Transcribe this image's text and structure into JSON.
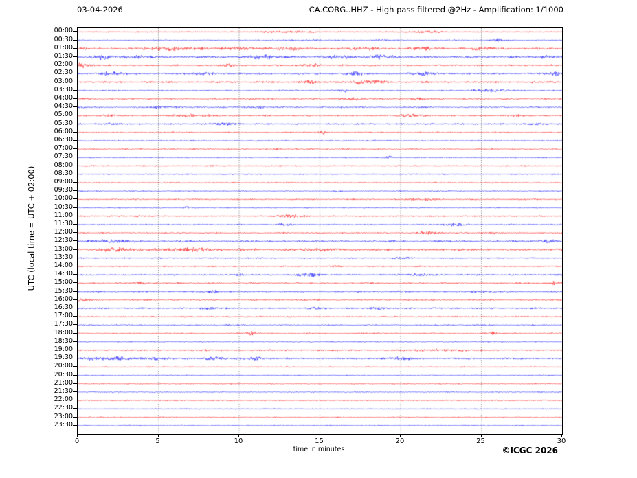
{
  "header": {
    "date": "03-04-2026",
    "station_title": "CA.CORG..HHZ - High pass filtered @2Hz - Amplification: 1/1000"
  },
  "footer": {
    "copyright": "©ICGC 2026"
  },
  "colors": {
    "red": "#ff0000",
    "blue": "#0000ff",
    "grid": "#555555",
    "frame": "#000000",
    "background": "#ffffff"
  },
  "chart_data": {
    "type": "line",
    "subtype": "helicorder-seismogram",
    "title": "CA.CORG..HHZ - High pass filtered @2Hz - Amplification: 1/1000",
    "date": "03-04-2026",
    "x_axis": {
      "label": "time in minutes",
      "ticks": [
        "0",
        "5",
        "10",
        "15",
        "20",
        "25",
        "30"
      ],
      "range": [
        0,
        30
      ],
      "gridlines_at_minutes": [
        5,
        10,
        15,
        20,
        25
      ],
      "grid_style": "dotted"
    },
    "y_axis": {
      "label": "UTC (local time = UTC + 02:00)",
      "direction": "top-to-bottom",
      "minutes_per_row": 30
    },
    "legend": {
      "hour_rows_color": "red",
      "half_hour_rows_color": "blue"
    },
    "rows": [
      {
        "label": "00:00",
        "color": "red",
        "noise": 0.5,
        "events": [
          [
            13,
            0.9,
            1.5
          ],
          [
            21.5,
            1.0,
            1.2
          ]
        ]
      },
      {
        "label": "00:30",
        "color": "blue",
        "noise": 0.5,
        "events": [
          [
            14,
            0.7,
            0.8
          ],
          [
            19,
            0.6,
            0.6
          ],
          [
            26,
            0.8,
            0.5
          ]
        ]
      },
      {
        "label": "01:00",
        "color": "red",
        "noise": 0.95,
        "events": [
          [
            5.5,
            1.5,
            1.2
          ],
          [
            9,
            1.0,
            1.5
          ],
          [
            13,
            1.3,
            0.8
          ],
          [
            17.5,
            1.1,
            1.0
          ],
          [
            21.3,
            1.5,
            0.7
          ],
          [
            25,
            0.9,
            1.0
          ]
        ]
      },
      {
        "label": "01:30",
        "color": "blue",
        "noise": 1.0,
        "events": [
          [
            1.4,
            2.4,
            0.5
          ],
          [
            3.5,
            1.2,
            0.8
          ],
          [
            11.6,
            2.0,
            0.8
          ],
          [
            16,
            1.1,
            1.0
          ],
          [
            18.8,
            1.5,
            0.9
          ],
          [
            29,
            1.3,
            0.6
          ]
        ]
      },
      {
        "label": "02:00",
        "color": "red",
        "noise": 0.75,
        "events": [
          [
            0.3,
            2.0,
            0.5
          ],
          [
            9.3,
            1.2,
            0.5
          ],
          [
            14.5,
            0.9,
            0.6
          ]
        ]
      },
      {
        "label": "02:30",
        "color": "blue",
        "noise": 0.8,
        "events": [
          [
            2,
            1.4,
            0.8
          ],
          [
            8,
            1.1,
            0.6
          ],
          [
            17.2,
            1.7,
            0.5
          ],
          [
            21.3,
            1.5,
            0.7
          ],
          [
            29.6,
            1.7,
            0.4
          ]
        ]
      },
      {
        "label": "03:00",
        "color": "red",
        "noise": 0.8,
        "events": [
          [
            14.3,
            1.4,
            0.5
          ],
          [
            17.3,
            1.8,
            0.5
          ],
          [
            18.6,
            1.8,
            0.5
          ]
        ]
      },
      {
        "label": "03:30",
        "color": "blue",
        "noise": 0.6,
        "events": [
          [
            16.5,
            0.9,
            0.4
          ],
          [
            25.5,
            1.6,
            0.9
          ]
        ]
      },
      {
        "label": "04:00",
        "color": "red",
        "noise": 0.7,
        "events": [
          [
            17.5,
            1.0,
            0.8
          ],
          [
            21,
            0.9,
            0.6
          ]
        ]
      },
      {
        "label": "04:30",
        "color": "blue",
        "noise": 0.65,
        "events": [
          [
            5.5,
            0.9,
            0.9
          ],
          [
            11,
            0.8,
            0.8
          ]
        ]
      },
      {
        "label": "05:00",
        "color": "red",
        "noise": 0.7,
        "events": [
          [
            2,
            1.1,
            0.6
          ],
          [
            6.5,
            1.3,
            0.8
          ],
          [
            8.2,
            1.0,
            0.5
          ],
          [
            20.5,
            1.3,
            0.9
          ],
          [
            27,
            1.1,
            0.6
          ]
        ]
      },
      {
        "label": "05:30",
        "color": "blue",
        "noise": 0.7,
        "events": [
          [
            2.3,
            0.9,
            0.5
          ],
          [
            9,
            1.2,
            0.6
          ],
          [
            28.5,
            1.0,
            0.5
          ]
        ]
      },
      {
        "label": "06:00",
        "color": "red",
        "noise": 0.6,
        "events": [
          [
            15.2,
            1.8,
            0.3
          ]
        ]
      },
      {
        "label": "06:30",
        "color": "blue",
        "noise": 0.55,
        "events": [
          [
            18,
            0.6,
            0.4
          ]
        ]
      },
      {
        "label": "07:00",
        "color": "red",
        "noise": 0.6,
        "events": []
      },
      {
        "label": "07:30",
        "color": "blue",
        "noise": 0.5,
        "events": [
          [
            19.3,
            1.4,
            0.25
          ]
        ]
      },
      {
        "label": "08:00",
        "color": "red",
        "noise": 0.55,
        "events": []
      },
      {
        "label": "08:30",
        "color": "blue",
        "noise": 0.5,
        "events": []
      },
      {
        "label": "09:00",
        "color": "red",
        "noise": 0.55,
        "events": []
      },
      {
        "label": "09:30",
        "color": "blue",
        "noise": 0.5,
        "events": [
          [
            16,
            0.6,
            0.3
          ]
        ]
      },
      {
        "label": "10:00",
        "color": "red",
        "noise": 0.6,
        "events": [
          [
            21.5,
            1.4,
            0.9
          ]
        ]
      },
      {
        "label": "10:30",
        "color": "blue",
        "noise": 0.5,
        "events": [
          [
            6.7,
            1.3,
            0.3
          ]
        ]
      },
      {
        "label": "11:00",
        "color": "red",
        "noise": 0.6,
        "events": [
          [
            3.7,
            0.8,
            0.4
          ],
          [
            13.2,
            1.4,
            0.9
          ]
        ]
      },
      {
        "label": "11:30",
        "color": "blue",
        "noise": 0.6,
        "events": [
          [
            12.8,
            1.1,
            0.5
          ],
          [
            23.3,
            1.2,
            0.6
          ]
        ]
      },
      {
        "label": "12:00",
        "color": "red",
        "noise": 0.6,
        "events": [
          [
            21.8,
            1.2,
            0.7
          ],
          [
            26,
            0.8,
            0.5
          ]
        ]
      },
      {
        "label": "12:30",
        "color": "blue",
        "noise": 0.85,
        "events": [
          [
            2,
            1.0,
            1.5
          ],
          [
            29.2,
            1.4,
            0.5
          ]
        ]
      },
      {
        "label": "13:00",
        "color": "red",
        "noise": 1.05,
        "events": [
          [
            2.5,
            1.4,
            1.2
          ],
          [
            7,
            1.4,
            1.5
          ],
          [
            15,
            1.2,
            0.8
          ]
        ]
      },
      {
        "label": "13:30",
        "color": "blue",
        "noise": 0.6,
        "events": [
          [
            20,
            0.8,
            0.5
          ]
        ]
      },
      {
        "label": "14:00",
        "color": "red",
        "noise": 0.6,
        "events": [
          [
            16,
            0.7,
            0.5
          ]
        ]
      },
      {
        "label": "14:30",
        "color": "blue",
        "noise": 0.7,
        "events": [
          [
            10,
            0.8,
            0.4
          ],
          [
            14.5,
            1.9,
            0.7
          ],
          [
            21,
            1.2,
            0.7
          ]
        ]
      },
      {
        "label": "15:00",
        "color": "red",
        "noise": 0.7,
        "events": [
          [
            4,
            0.8,
            0.5
          ],
          [
            29.4,
            1.5,
            0.4
          ]
        ]
      },
      {
        "label": "15:30",
        "color": "blue",
        "noise": 0.7,
        "events": [
          [
            8.5,
            1.1,
            0.5
          ],
          [
            25,
            1.0,
            0.6
          ]
        ]
      },
      {
        "label": "16:00",
        "color": "red",
        "noise": 0.7,
        "events": [
          [
            0.2,
            1.4,
            0.3
          ]
        ]
      },
      {
        "label": "16:30",
        "color": "blue",
        "noise": 0.7,
        "events": [
          [
            8,
            1.0,
            0.5
          ],
          [
            14.8,
            1.1,
            0.4
          ],
          [
            18.6,
            1.2,
            0.5
          ]
        ]
      },
      {
        "label": "17:00",
        "color": "red",
        "noise": 0.6,
        "events": []
      },
      {
        "label": "17:30",
        "color": "blue",
        "noise": 0.55,
        "events": []
      },
      {
        "label": "18:00",
        "color": "red",
        "noise": 0.6,
        "events": [
          [
            10.8,
            1.6,
            0.35
          ],
          [
            25.7,
            1.9,
            0.2
          ]
        ]
      },
      {
        "label": "18:30",
        "color": "blue",
        "noise": 0.5,
        "events": []
      },
      {
        "label": "19:00",
        "color": "red",
        "noise": 0.7,
        "events": [
          [
            22.5,
            0.9,
            1.5
          ]
        ]
      },
      {
        "label": "19:30",
        "color": "blue",
        "noise": 0.75,
        "events": [
          [
            1,
            1.2,
            0.8
          ],
          [
            2.5,
            1.3,
            0.8
          ],
          [
            4.5,
            1.2,
            1.0
          ],
          [
            8.5,
            1.4,
            0.8
          ],
          [
            11,
            1.6,
            0.6
          ],
          [
            20,
            1.0,
            1.0
          ]
        ]
      },
      {
        "label": "20:00",
        "color": "red",
        "noise": 0.5,
        "events": []
      },
      {
        "label": "20:30",
        "color": "blue",
        "noise": 0.45,
        "events": []
      },
      {
        "label": "21:00",
        "color": "red",
        "noise": 0.5,
        "events": []
      },
      {
        "label": "21:30",
        "color": "blue",
        "noise": 0.45,
        "events": []
      },
      {
        "label": "22:00",
        "color": "red",
        "noise": 0.5,
        "events": []
      },
      {
        "label": "22:30",
        "color": "blue",
        "noise": 0.45,
        "events": []
      },
      {
        "label": "23:00",
        "color": "red",
        "noise": 0.5,
        "events": []
      },
      {
        "label": "23:30",
        "color": "blue",
        "noise": 0.45,
        "events": []
      }
    ]
  }
}
